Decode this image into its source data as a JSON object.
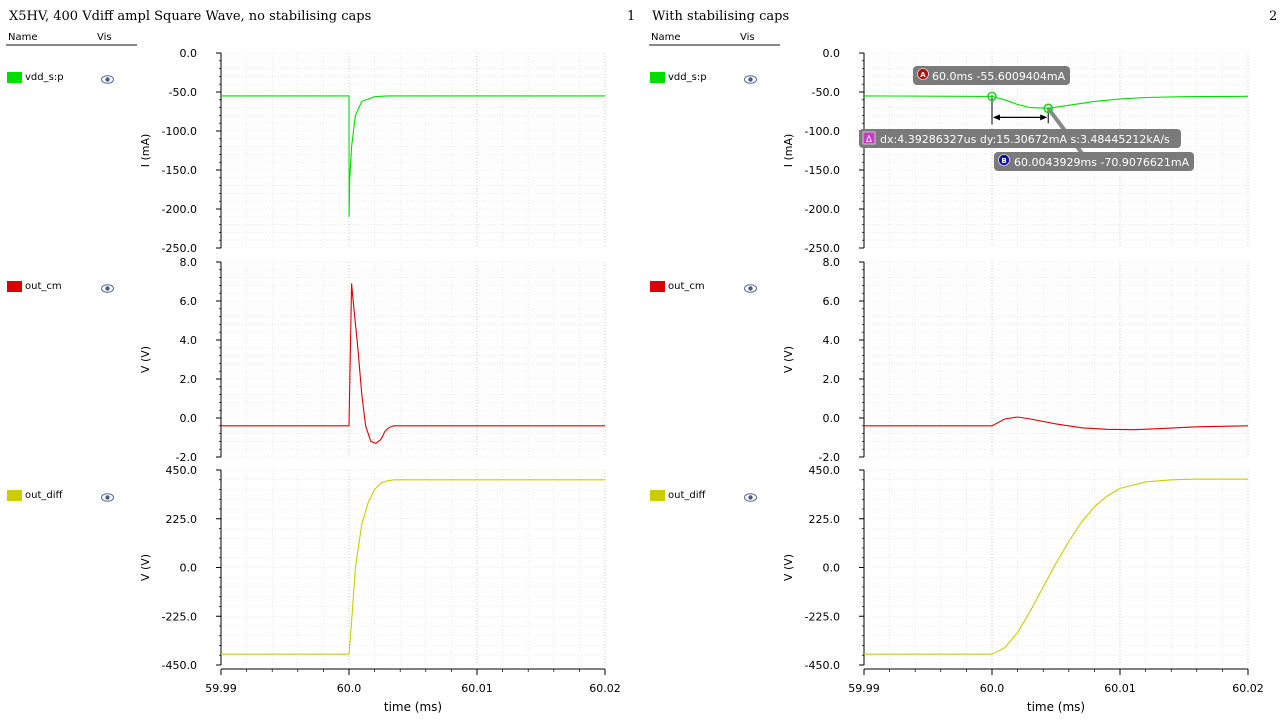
{
  "panels": [
    {
      "title": "X5HV, 400 Vdiff ampl Square Wave, no stabilising caps",
      "number": "1",
      "legend_header": {
        "name": "Name",
        "vis": "Vis"
      },
      "legend": [
        {
          "name": "vdd_s:p",
          "color": "#00dd00"
        },
        {
          "name": "out_cm",
          "color": "#dd0000"
        },
        {
          "name": "out_diff",
          "color": "#cccc00"
        }
      ]
    },
    {
      "title": "With stabilising caps",
      "number": "2",
      "legend_header": {
        "name": "Name",
        "vis": "Vis"
      },
      "legend": [
        {
          "name": "vdd_s:p",
          "color": "#00dd00"
        },
        {
          "name": "out_cm",
          "color": "#dd0000"
        },
        {
          "name": "out_diff",
          "color": "#cccc00"
        }
      ]
    }
  ],
  "markers": {
    "a": {
      "letter": "A",
      "label": "60.0ms -55.6009404mA"
    },
    "b": {
      "letter": "B",
      "label": "60.0043929ms -70.9076621mA"
    },
    "delta": {
      "letter": "Δ",
      "label": "dx:4.39286327us dy:15.30672mA s:3.48445212kA/s"
    }
  },
  "chart_data": [
    {
      "type": "line",
      "panel": 1,
      "xlabel": "time (ms)",
      "xlim": [
        59.99,
        60.02
      ],
      "xticks": [
        "59.99",
        "60.0",
        "60.01",
        "60.02"
      ],
      "subplots": [
        {
          "ylabel": "I (mA)",
          "ylim": [
            -250,
            0
          ],
          "yticks": [
            "0.0",
            "-50.0",
            "-100.0",
            "-150.0",
            "-200.0",
            "-250.0"
          ],
          "series": [
            {
              "color": "#00dd00",
              "x": [
                59.99,
                60.0,
                60.00001,
                60.00005,
                60.0002,
                60.0005,
                60.001,
                60.002,
                60.003,
                60.02
              ],
              "y": [
                -55,
                -55,
                -210,
                -165,
                -120,
                -80,
                -62,
                -56,
                -55,
                -55
              ]
            }
          ]
        },
        {
          "ylabel": "V (V)",
          "ylim": [
            -2,
            8
          ],
          "yticks": [
            "8.0",
            "6.0",
            "4.0",
            "2.0",
            "0.0",
            "-2.0"
          ],
          "series": [
            {
              "color": "#dd0000",
              "x": [
                59.99,
                60.0,
                60.0002,
                60.0003,
                60.0007,
                60.001,
                60.0013,
                60.0017,
                60.0021,
                60.0025,
                60.0028,
                60.0031,
                60.0035,
                60.004,
                60.02
              ],
              "y": [
                -0.4,
                -0.4,
                6.9,
                6.2,
                3.5,
                1.2,
                -0.4,
                -1.2,
                -1.3,
                -1.1,
                -0.7,
                -0.5,
                -0.4,
                -0.4,
                -0.4
              ]
            }
          ]
        },
        {
          "ylabel": "V (V)",
          "ylim": [
            -450,
            450
          ],
          "yticks": [
            "450.0",
            "225.0",
            "0.0",
            "-225.0",
            "-450.0"
          ],
          "series": [
            {
              "color": "#cccc00",
              "x": [
                59.99,
                60.0,
                60.0002,
                60.0005,
                60.001,
                60.0015,
                60.002,
                60.0025,
                60.003,
                60.0035,
                60.004,
                60.02
              ],
              "y": [
                -400,
                -400,
                -250,
                0,
                200,
                300,
                360,
                390,
                400,
                405,
                405,
                405
              ]
            }
          ]
        }
      ]
    },
    {
      "type": "line",
      "panel": 2,
      "xlabel": "time (ms)",
      "xlim": [
        59.99,
        60.02
      ],
      "xticks": [
        "59.99",
        "60.0",
        "60.01",
        "60.02"
      ],
      "subplots": [
        {
          "ylabel": "I (mA)",
          "ylim": [
            -250,
            0
          ],
          "yticks": [
            "0.0",
            "-50.0",
            "-100.0",
            "-150.0",
            "-200.0",
            "-250.0"
          ],
          "series": [
            {
              "color": "#00dd00",
              "x": [
                59.99,
                60.0,
                60.001,
                60.002,
                60.003,
                60.0044,
                60.006,
                60.008,
                60.01,
                60.012,
                60.015,
                60.02
              ],
              "y": [
                -55,
                -55.6,
                -60,
                -66,
                -70,
                -70.9,
                -67,
                -62,
                -59,
                -57,
                -56,
                -55.5
              ]
            }
          ]
        },
        {
          "ylabel": "V (V)",
          "ylim": [
            -2,
            8
          ],
          "yticks": [
            "8.0",
            "6.0",
            "4.0",
            "2.0",
            "0.0",
            "-2.0"
          ],
          "series": [
            {
              "color": "#dd0000",
              "x": [
                59.99,
                60.0,
                60.001,
                60.002,
                60.003,
                60.005,
                60.007,
                60.009,
                60.011,
                60.013,
                60.016,
                60.02
              ],
              "y": [
                -0.4,
                -0.4,
                -0.05,
                0.05,
                -0.05,
                -0.3,
                -0.5,
                -0.58,
                -0.6,
                -0.55,
                -0.45,
                -0.4
              ]
            }
          ]
        },
        {
          "ylabel": "V (V)",
          "ylim": [
            -450,
            450
          ],
          "yticks": [
            "450.0",
            "225.0",
            "0.0",
            "-225.0",
            "-450.0"
          ],
          "series": [
            {
              "color": "#cccc00",
              "x": [
                59.99,
                60.0,
                60.001,
                60.002,
                60.003,
                60.004,
                60.005,
                60.006,
                60.007,
                60.008,
                60.009,
                60.01,
                60.012,
                60.014,
                60.016,
                60.02
              ],
              "y": [
                -400,
                -400,
                -370,
                -300,
                -200,
                -90,
                20,
                120,
                210,
                280,
                330,
                365,
                395,
                405,
                408,
                408
              ]
            }
          ]
        }
      ]
    }
  ]
}
